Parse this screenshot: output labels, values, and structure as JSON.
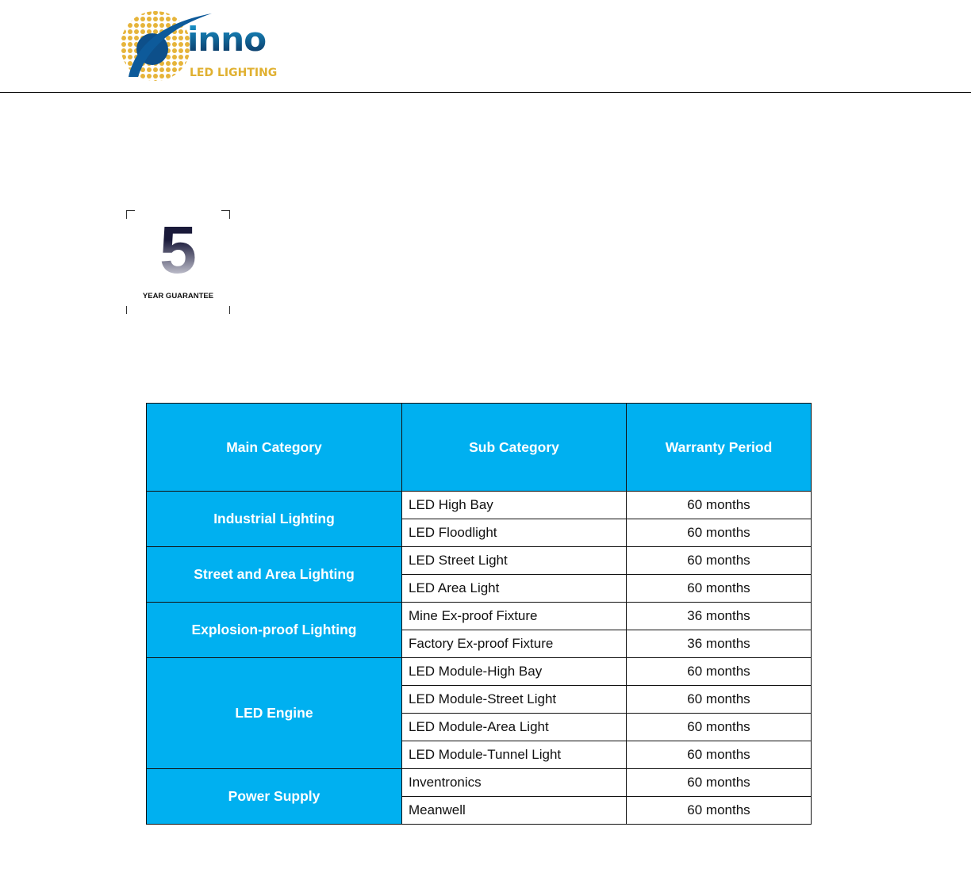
{
  "logo": {
    "brand": "inno",
    "tagline": "LED LIGHTING"
  },
  "badge": {
    "number": "5",
    "label": "YEAR GUARANTEE"
  },
  "table": {
    "headers": [
      "Main Category",
      "Sub Category",
      "Warranty Period"
    ],
    "groups": [
      {
        "main": "Industrial Lighting",
        "rows": [
          {
            "sub": "LED High Bay",
            "period": "60 months"
          },
          {
            "sub": "LED Floodlight",
            "period": "60 months"
          }
        ]
      },
      {
        "main": "Street and Area Lighting",
        "rows": [
          {
            "sub": "LED Street Light",
            "period": "60 months"
          },
          {
            "sub": "LED Area Light",
            "period": "60 months"
          }
        ]
      },
      {
        "main": "Explosion-proof Lighting",
        "rows": [
          {
            "sub": "Mine Ex-proof Fixture",
            "period": "36 months"
          },
          {
            "sub": "Factory Ex-proof Fixture",
            "period": "36 months"
          }
        ]
      },
      {
        "main": "LED Engine",
        "rows": [
          {
            "sub": "LED Module-High Bay",
            "period": "60 months"
          },
          {
            "sub": "LED Module-Street Light",
            "period": "60 months"
          },
          {
            "sub": "LED Module-Area Light",
            "period": "60 months"
          },
          {
            "sub": "LED Module-Tunnel Light",
            "period": "60 months"
          }
        ]
      },
      {
        "main": "Power Supply",
        "rows": [
          {
            "sub": "Inventronics",
            "period": "60 months"
          },
          {
            "sub": "Meanwell",
            "period": "60 months"
          }
        ]
      }
    ]
  },
  "colors": {
    "header": "#00b0f0",
    "logo_blue": "#0d3a6e",
    "logo_gold": "#e0b030"
  }
}
